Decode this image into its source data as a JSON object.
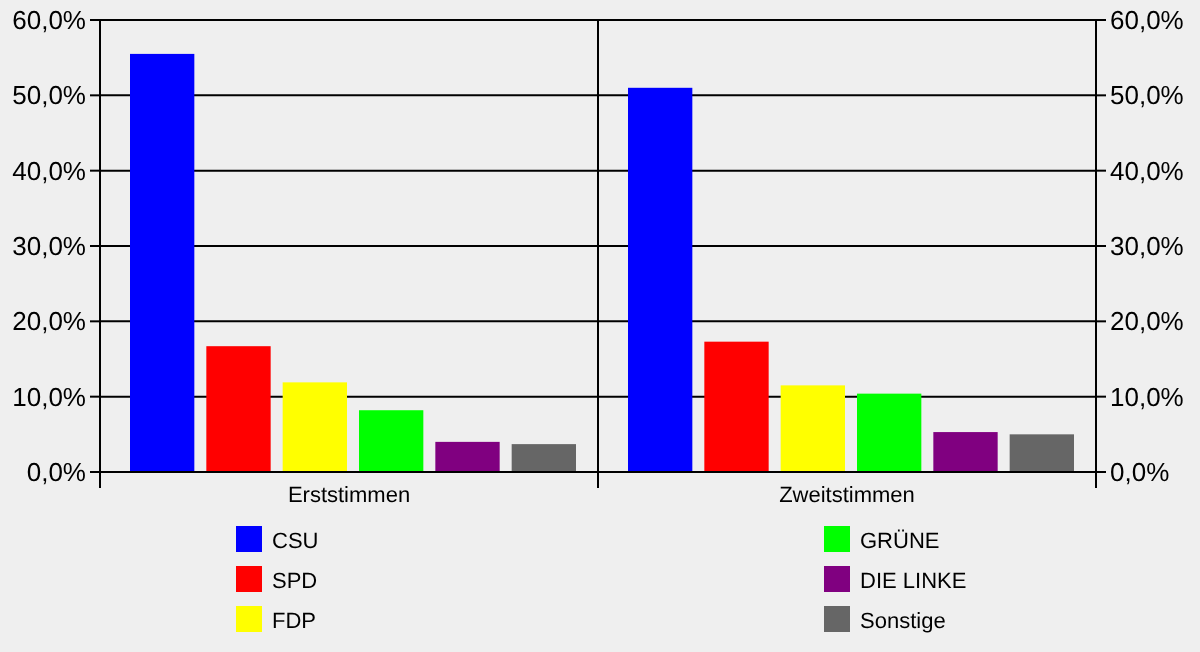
{
  "chart_data": {
    "type": "bar",
    "categories": [
      "Erststimmen",
      "Zweitstimmen"
    ],
    "series": [
      {
        "name": "CSU",
        "color": "#0000ff",
        "values": [
          55.5,
          51.0
        ]
      },
      {
        "name": "SPD",
        "color": "#ff0000",
        "values": [
          16.7,
          17.3
        ]
      },
      {
        "name": "FDP",
        "color": "#ffff00",
        "values": [
          11.9,
          11.5
        ]
      },
      {
        "name": "GRÜNE",
        "color": "#00ff00",
        "values": [
          8.2,
          10.4
        ]
      },
      {
        "name": "DIE LINKE",
        "color": "#800080",
        "values": [
          4.0,
          5.3
        ]
      },
      {
        "name": "Sonstige",
        "color": "#666666",
        "values": [
          3.7,
          5.0
        ]
      }
    ],
    "ylim": [
      0,
      60
    ],
    "yticks": [
      {
        "value": 0,
        "label": "0,0%"
      },
      {
        "value": 10,
        "label": "10,0%"
      },
      {
        "value": 20,
        "label": "20,0%"
      },
      {
        "value": 30,
        "label": "30,0%"
      },
      {
        "value": 40,
        "label": "40,0%"
      },
      {
        "value": 50,
        "label": "50,0%"
      },
      {
        "value": 60,
        "label": "60,0%"
      }
    ],
    "y2lim": [
      0,
      60
    ],
    "y2ticks": [
      {
        "value": 0,
        "label": "0,0%"
      },
      {
        "value": 10,
        "label": "10,0%"
      },
      {
        "value": 20,
        "label": "20,0%"
      },
      {
        "value": 30,
        "label": "30,0%"
      },
      {
        "value": 40,
        "label": "40,0%"
      },
      {
        "value": 50,
        "label": "50,0%"
      },
      {
        "value": 60,
        "label": "60,0%"
      }
    ],
    "grid": "y",
    "legend": "bottom"
  }
}
